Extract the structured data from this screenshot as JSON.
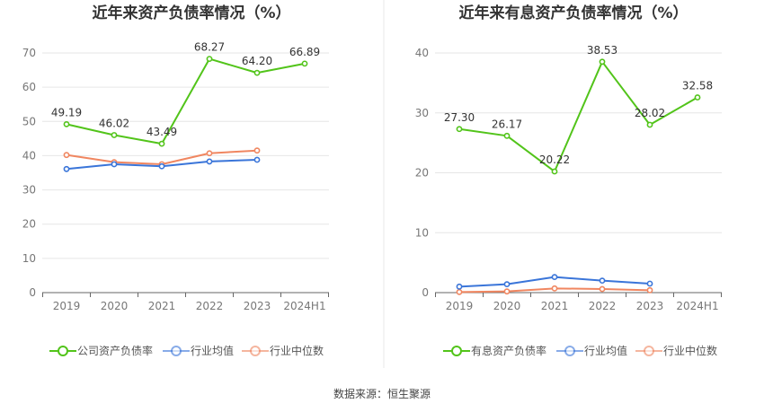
{
  "source_text": "数据来源：恒生聚源",
  "colors": {
    "main": "#52c41a",
    "avg": "#3a75d9",
    "median": "#f08660",
    "grid": "#e6e6e6",
    "axis": "#666666"
  },
  "chart_data": [
    {
      "type": "line",
      "title": "近年来资产负债率情况（%）",
      "categories": [
        "2019",
        "2020",
        "2021",
        "2022",
        "2023",
        "2024H1"
      ],
      "ylim": [
        0,
        70
      ],
      "yticks": [
        0,
        10,
        20,
        30,
        40,
        50,
        60,
        70
      ],
      "grid": true,
      "legend_position": "bottom",
      "series": [
        {
          "name": "公司资产负债率",
          "values": [
            49.19,
            46.02,
            43.49,
            68.27,
            64.2,
            66.89
          ],
          "labels": [
            "49.19",
            "46.02",
            "43.49",
            "68.27",
            "64.20",
            "66.89"
          ]
        },
        {
          "name": "行业均值",
          "values": [
            36.1,
            37.5,
            36.9,
            38.3,
            38.8,
            null
          ]
        },
        {
          "name": "行业中位数",
          "values": [
            40.2,
            38.1,
            37.5,
            40.7,
            41.5,
            null
          ]
        }
      ]
    },
    {
      "type": "line",
      "title": "近年来有息资产负债率情况（%）",
      "categories": [
        "2019",
        "2020",
        "2021",
        "2022",
        "2023",
        "2024H1"
      ],
      "ylim": [
        0,
        40
      ],
      "yticks": [
        0,
        10,
        20,
        30,
        40
      ],
      "grid": true,
      "legend_position": "bottom",
      "series": [
        {
          "name": "有息资产负债率",
          "values": [
            27.3,
            26.17,
            20.22,
            38.53,
            28.02,
            32.58
          ],
          "labels": [
            "27.30",
            "26.17",
            "20.22",
            "38.53",
            "28.02",
            "32.58"
          ]
        },
        {
          "name": "行业均值",
          "values": [
            1.0,
            1.4,
            2.6,
            2.0,
            1.5,
            null
          ]
        },
        {
          "name": "行业中位数",
          "values": [
            0.1,
            0.2,
            0.7,
            0.6,
            0.4,
            null
          ]
        }
      ]
    }
  ]
}
